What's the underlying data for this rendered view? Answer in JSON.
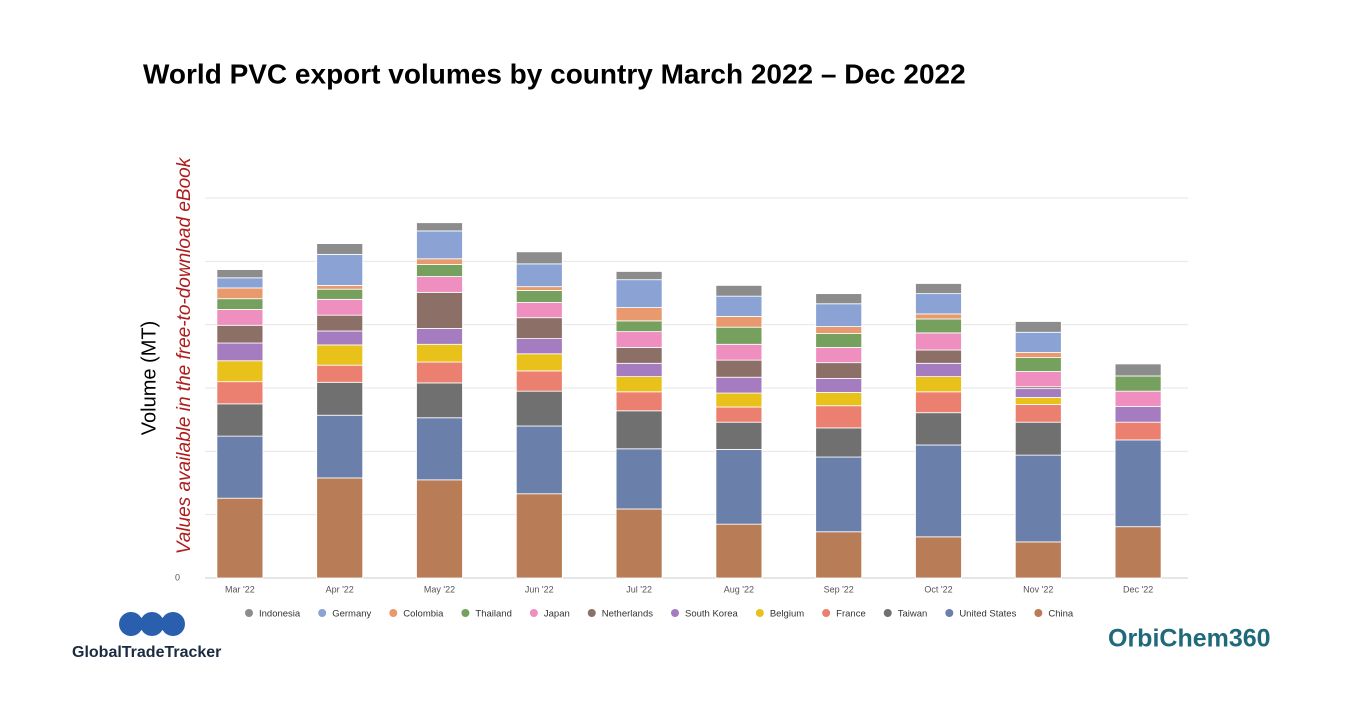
{
  "chart_data": {
    "type": "stacked_bar",
    "title": "World PVC export volumes by country March 2022 – Dec 2022",
    "y_label": "Volume (MT)",
    "annotation": "Values available in the free-to-download eBook",
    "categories": [
      "Mar '22",
      "Apr '22",
      "May '22",
      "Jun '22",
      "Jul '22",
      "Aug '22",
      "Sep '22",
      "Oct '22",
      "Nov '22",
      "Dec '22"
    ],
    "series": [
      {
        "name": "Indonesia",
        "color": "#8c8c8c",
        "values": [
          0.13,
          0.17,
          0.13,
          0.19,
          0.13,
          0.17,
          0.16,
          0.16,
          0.17,
          0.19
        ]
      },
      {
        "name": "Germany",
        "color": "#8aa2d4",
        "values": [
          0.16,
          0.49,
          0.44,
          0.36,
          0.44,
          0.32,
          0.36,
          0.32,
          0.32,
          0
        ]
      },
      {
        "name": "Colombia",
        "color": "#e89a6e",
        "values": [
          0.17,
          0.06,
          0.09,
          0.06,
          0.21,
          0.17,
          0.11,
          0.08,
          0.08,
          0
        ]
      },
      {
        "name": "Thailand",
        "color": "#76a05e",
        "values": [
          0.17,
          0.16,
          0.19,
          0.19,
          0.17,
          0.27,
          0.22,
          0.22,
          0.22,
          0.24
        ]
      },
      {
        "name": "Japan",
        "color": "#ef8fc0",
        "values": [
          0.25,
          0.25,
          0.25,
          0.24,
          0.25,
          0.25,
          0.24,
          0.27,
          0.24,
          0.24
        ]
      },
      {
        "name": "Netherlands",
        "color": "#8c7068",
        "values": [
          0.28,
          0.25,
          0.57,
          0.33,
          0.25,
          0.27,
          0.25,
          0.21,
          0.03,
          0
        ]
      },
      {
        "name": "South Korea",
        "color": "#a67cc0",
        "values": [
          0.28,
          0.22,
          0.25,
          0.24,
          0.21,
          0.25,
          0.22,
          0.21,
          0.14,
          0.25
        ]
      },
      {
        "name": "Belgium",
        "color": "#e8c21a",
        "values": [
          0.33,
          0.32,
          0.28,
          0.27,
          0.24,
          0.22,
          0.21,
          0.24,
          0.11,
          0
        ]
      },
      {
        "name": "France",
        "color": "#ec8070",
        "values": [
          0.35,
          0.27,
          0.33,
          0.32,
          0.3,
          0.24,
          0.35,
          0.33,
          0.28,
          0.28
        ]
      },
      {
        "name": "Taiwan",
        "color": "#707070",
        "values": [
          0.51,
          0.52,
          0.55,
          0.55,
          0.6,
          0.43,
          0.46,
          0.51,
          0.52,
          0
        ]
      },
      {
        "name": "United States",
        "color": "#6a7faa",
        "values": [
          0.98,
          0.99,
          0.98,
          1.07,
          0.95,
          1.18,
          1.18,
          1.45,
          1.37,
          1.37
        ]
      },
      {
        "name": "China",
        "color": "#b87c56",
        "values": [
          1.26,
          1.58,
          1.55,
          1.33,
          1.09,
          0.85,
          0.73,
          0.65,
          0.57,
          0.81
        ]
      }
    ],
    "ylim": [
      0,
      6
    ],
    "yticks": [
      0
    ],
    "ygrid": [
      0,
      1,
      2,
      3,
      4,
      5,
      6
    ],
    "grid": true,
    "legend": "bottom"
  },
  "logos": {
    "left": "GlobalTradeTracker",
    "right": "OrbiChem360"
  }
}
